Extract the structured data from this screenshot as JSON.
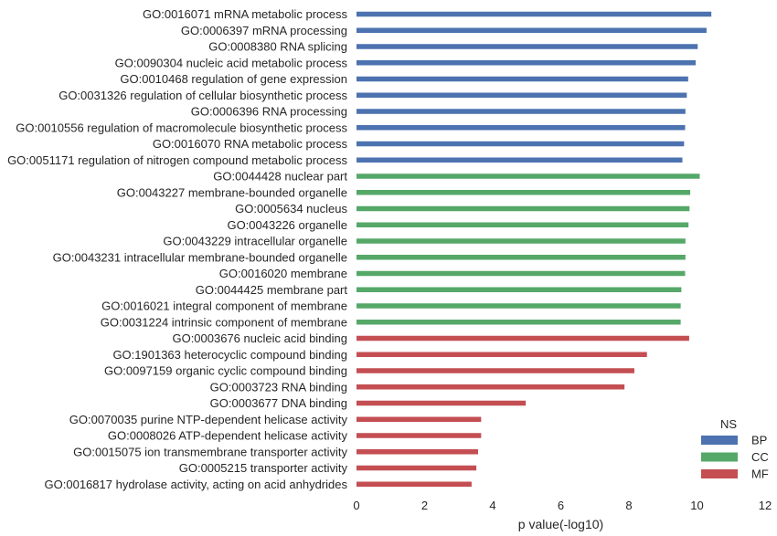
{
  "chart_data": {
    "type": "bar",
    "orientation": "horizontal",
    "categories": [
      "GO:0016071 mRNA metabolic process",
      "GO:0006397 mRNA processing",
      "GO:0008380 RNA splicing",
      "GO:0090304 nucleic acid metabolic process",
      "GO:0010468 regulation of gene expression",
      "GO:0031326 regulation of cellular biosynthetic process",
      "GO:0006396 RNA processing",
      "GO:0010556 regulation of macromolecule biosynthetic process",
      "GO:0016070 RNA metabolic process",
      "GO:0051171 regulation of nitrogen compound metabolic process",
      "GO:0044428 nuclear part",
      "GO:0043227 membrane-bounded organelle",
      "GO:0005634 nucleus",
      "GO:0043226 organelle",
      "GO:0043229 intracellular organelle",
      "GO:0043231 intracellular membrane-bounded organelle",
      "GO:0016020 membrane",
      "GO:0044425 membrane part",
      "GO:0016021 integral component of membrane",
      "GO:0031224 intrinsic component of membrane",
      "GO:0003676 nucleic acid binding",
      "GO:1901363 heterocyclic compound binding",
      "GO:0097159 organic cyclic compound binding",
      "GO:0003723 RNA binding",
      "GO:0003677 DNA binding",
      "GO:0070035 purine NTP-dependent helicase activity",
      "GO:0008026 ATP-dependent helicase activity",
      "GO:0015075 ion transmembrane transporter activity",
      "GO:0005215 transporter activity",
      "GO:0016817 hydrolase activity, acting on acid anhydrides"
    ],
    "series": [
      {
        "name": "BP",
        "color": "#4c72b0",
        "values": [
          10.42,
          10.28,
          10.02,
          9.96,
          9.74,
          9.7,
          9.66,
          9.65,
          9.62,
          9.57,
          null,
          null,
          null,
          null,
          null,
          null,
          null,
          null,
          null,
          null,
          null,
          null,
          null,
          null,
          null,
          null,
          null,
          null,
          null,
          null
        ]
      },
      {
        "name": "CC",
        "color": "#55a868",
        "values": [
          null,
          null,
          null,
          null,
          null,
          null,
          null,
          null,
          null,
          null,
          10.08,
          9.8,
          9.78,
          9.75,
          9.66,
          9.66,
          9.65,
          9.54,
          9.52,
          9.52,
          null,
          null,
          null,
          null,
          null,
          null,
          null,
          null,
          null,
          null
        ]
      },
      {
        "name": "MF",
        "color": "#c44e52",
        "values": [
          null,
          null,
          null,
          null,
          null,
          null,
          null,
          null,
          null,
          null,
          null,
          null,
          null,
          null,
          null,
          null,
          null,
          null,
          null,
          null,
          9.77,
          8.53,
          8.16,
          7.87,
          4.97,
          3.66,
          3.66,
          3.57,
          3.52,
          3.38
        ]
      }
    ],
    "xlabel": "p value(-log10)",
    "xlim": [
      0,
      12
    ],
    "xticks": [
      0,
      2,
      4,
      6,
      8,
      10,
      12
    ],
    "legend": {
      "title": "NS",
      "position": "bottom-right"
    },
    "grid": false
  }
}
